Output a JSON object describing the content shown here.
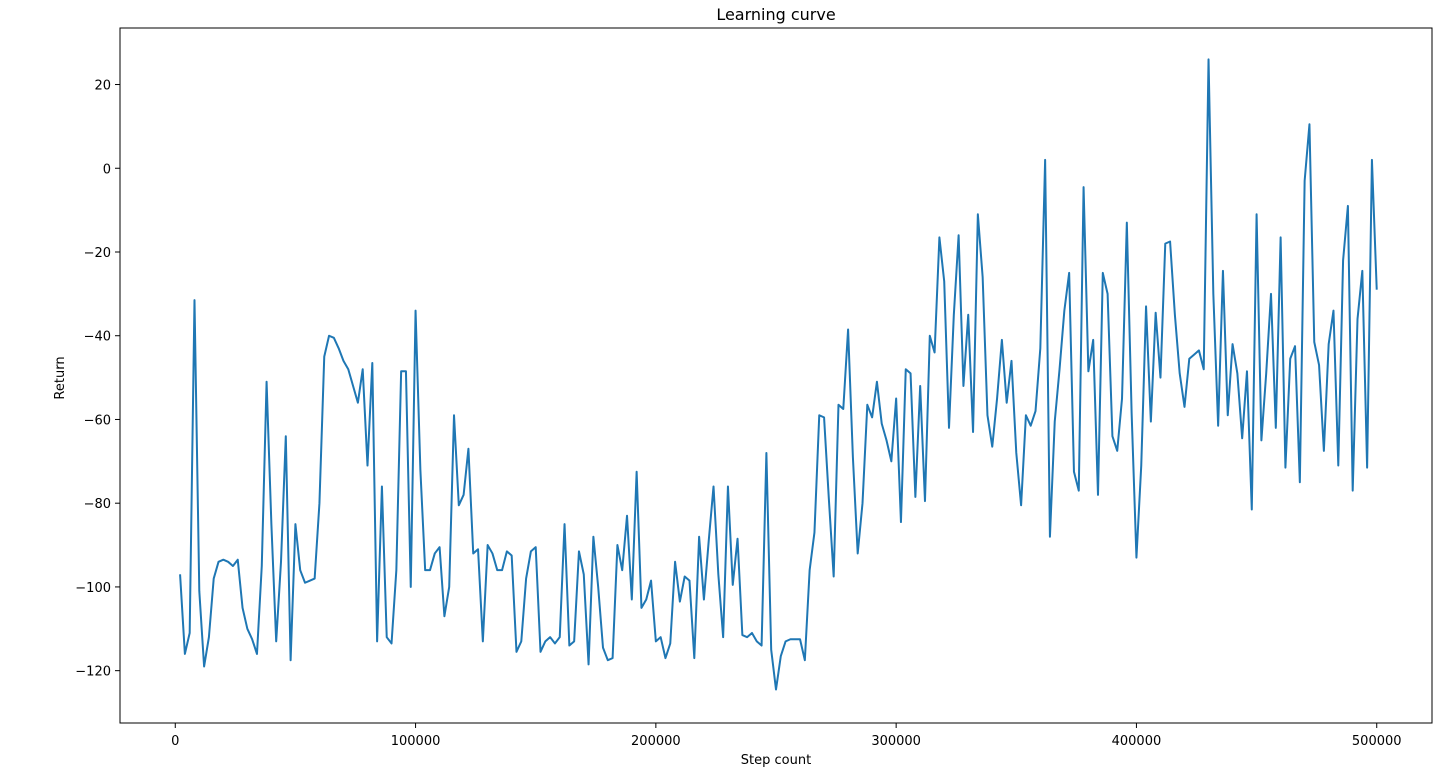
{
  "chart_data": {
    "type": "line",
    "title": "Learning curve",
    "xlabel": "Step count",
    "ylabel": "Return",
    "xlim": [
      -23000,
      523000
    ],
    "ylim": [
      -132.5,
      33.5
    ],
    "grid": false,
    "legend": "none",
    "x_ticks": [
      0,
      100000,
      200000,
      300000,
      400000,
      500000
    ],
    "x_tick_labels": [
      "0",
      "100000",
      "200000",
      "300000",
      "400000",
      "500000"
    ],
    "y_ticks": [
      -120,
      -100,
      -80,
      -60,
      -40,
      -20,
      0,
      20
    ],
    "y_tick_labels": [
      "−120",
      "−100",
      "−80",
      "−60",
      "−40",
      "−20",
      "0",
      "20"
    ],
    "series": [
      {
        "color": "#1f77b4",
        "x": [
          2000,
          4000,
          6000,
          8000,
          10000,
          12000,
          14000,
          16000,
          18000,
          20000,
          22000,
          24000,
          26000,
          28000,
          30000,
          32000,
          34000,
          36000,
          38000,
          40000,
          42000,
          44000,
          46000,
          48000,
          50000,
          52000,
          54000,
          56000,
          58000,
          60000,
          62000,
          64000,
          66000,
          68000,
          70000,
          72000,
          74000,
          76000,
          78000,
          80000,
          82000,
          84000,
          86000,
          88000,
          90000,
          92000,
          94000,
          96000,
          98000,
          100000,
          102000,
          104000,
          106000,
          108000,
          110000,
          112000,
          114000,
          116000,
          118000,
          120000,
          122000,
          124000,
          126000,
          128000,
          130000,
          132000,
          134000,
          136000,
          138000,
          140000,
          142000,
          144000,
          146000,
          148000,
          150000,
          152000,
          154000,
          156000,
          158000,
          160000,
          162000,
          164000,
          166000,
          168000,
          170000,
          172000,
          174000,
          176000,
          178000,
          180000,
          182000,
          184000,
          186000,
          188000,
          190000,
          192000,
          194000,
          196000,
          198000,
          200000,
          202000,
          204000,
          206000,
          208000,
          210000,
          212000,
          214000,
          216000,
          218000,
          220000,
          222000,
          224000,
          226000,
          228000,
          230000,
          232000,
          234000,
          236000,
          238000,
          240000,
          242000,
          244000,
          246000,
          248000,
          250000,
          252000,
          254000,
          256000,
          258000,
          260000,
          262000,
          264000,
          266000,
          268000,
          270000,
          272000,
          274000,
          276000,
          278000,
          280000,
          282000,
          284000,
          286000,
          288000,
          290000,
          292000,
          294000,
          296000,
          298000,
          300000,
          302000,
          304000,
          306000,
          308000,
          310000,
          312000,
          314000,
          316000,
          318000,
          320000,
          322000,
          324000,
          326000,
          328000,
          330000,
          332000,
          334000,
          336000,
          338000,
          340000,
          342000,
          344000,
          346000,
          348000,
          350000,
          352000,
          354000,
          356000,
          358000,
          360000,
          362000,
          364000,
          366000,
          368000,
          370000,
          372000,
          374000,
          376000,
          378000,
          380000,
          382000,
          384000,
          386000,
          388000,
          390000,
          392000,
          394000,
          396000,
          398000,
          400000,
          402000,
          404000,
          406000,
          408000,
          410000,
          412000,
          414000,
          416000,
          418000,
          420000,
          422000,
          424000,
          426000,
          428000,
          430000,
          432000,
          434000,
          436000,
          438000,
          440000,
          442000,
          444000,
          446000,
          448000,
          450000,
          452000,
          454000,
          456000,
          458000,
          460000,
          462000,
          464000,
          466000,
          468000,
          470000,
          472000,
          474000,
          476000,
          478000,
          480000,
          482000,
          484000,
          486000,
          488000,
          490000,
          492000,
          494000,
          496000,
          498000,
          500000
        ],
        "y": [
          -97,
          -116,
          -111,
          -31.5,
          -101,
          -119,
          -112,
          -98,
          -94,
          -93.5,
          -94,
          -95,
          -93.5,
          -105,
          -110,
          -112.5,
          -116,
          -95,
          -51,
          -85,
          -113,
          -94,
          -64,
          -117.5,
          -85,
          -96,
          -99,
          -98.5,
          -98,
          -80,
          -45,
          -40,
          -40.5,
          -43,
          -46,
          -48,
          -52,
          -56,
          -48,
          -71,
          -46.5,
          -113,
          -76,
          -112,
          -113.5,
          -96,
          -48.5,
          -48.5,
          -100,
          -34,
          -72,
          -96,
          -96,
          -92,
          -90.5,
          -107,
          -100,
          -59,
          -80.5,
          -78,
          -67,
          -92,
          -91,
          -113,
          -90,
          -92,
          -96,
          -96,
          -91.5,
          -92.5,
          -115.5,
          -113,
          -98,
          -91.5,
          -90.5,
          -115.5,
          -113,
          -112,
          -113.5,
          -112,
          -85,
          -114,
          -113,
          -91.5,
          -97,
          -118.5,
          -88,
          -100,
          -114.5,
          -117.5,
          -117,
          -90,
          -96,
          -83,
          -103,
          -72.5,
          -105,
          -103,
          -98.5,
          -113,
          -112,
          -117,
          -113.5,
          -94,
          -103.5,
          -97.5,
          -98.5,
          -117,
          -88,
          -103,
          -89,
          -76,
          -97,
          -112,
          -76,
          -99.5,
          -88.5,
          -111.5,
          -112,
          -111,
          -113,
          -114,
          -68,
          -115,
          -124.5,
          -116.5,
          -113,
          -112.5,
          -112.5,
          -112.5,
          -117.5,
          -96,
          -87,
          -59,
          -59.5,
          -79,
          -97.5,
          -56.5,
          -57.5,
          -38.5,
          -69,
          -92,
          -80,
          -56.5,
          -59.5,
          -51,
          -61,
          -65,
          -70,
          -55,
          -84.5,
          -48,
          -49,
          -78.5,
          -52,
          -79.5,
          -40,
          -44,
          -16.5,
          -27,
          -62,
          -35,
          -16,
          -52,
          -35,
          -63,
          -11,
          -26,
          -59,
          -66.5,
          -55,
          -41,
          -56,
          -46,
          -68,
          -80.5,
          -59,
          -61.5,
          -58,
          -43,
          2,
          -88,
          -60.5,
          -48,
          -34,
          -25,
          -72.5,
          -77,
          -4.5,
          -48.5,
          -41,
          -78,
          -25,
          -30,
          -64,
          -67.5,
          -55,
          -13,
          -58.5,
          -93,
          -71,
          -33,
          -60.5,
          -34.5,
          -50,
          -18,
          -17.5,
          -35,
          -49,
          -57,
          -45.5,
          -44.5,
          -43.5,
          -48,
          26,
          -30,
          -61.5,
          -24.5,
          -59,
          -42,
          -49,
          -64.5,
          -48.5,
          -81.5,
          -11,
          -65,
          -49,
          -30,
          -62,
          -16.5,
          -71.5,
          -45.5,
          -42.5,
          -75,
          -3,
          10.5,
          -41.5,
          -47,
          -67.5,
          -42,
          -34,
          -71,
          -22,
          -9,
          -77,
          -36,
          -24.5,
          -71.5,
          2,
          -29
        ]
      }
    ]
  }
}
